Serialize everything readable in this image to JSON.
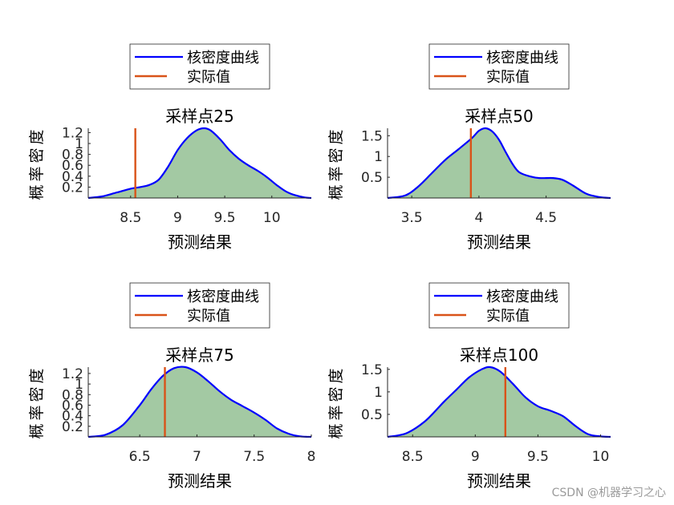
{
  "watermark": "CSDN @机器学习之心",
  "colors": {
    "kde_line": "#0000ff",
    "kde_fill": "#a3c9a3",
    "actual_line": "#d95319",
    "axis": "#262626",
    "text": "#000000"
  },
  "chart_data": [
    {
      "type": "area",
      "title": "采样点25",
      "xlabel": "预测结果",
      "ylabel": "概率密度",
      "legend": [
        "核密度曲线",
        "实际值"
      ],
      "legend_placement": "top",
      "xlim": [
        8.05,
        10.42
      ],
      "ylim": [
        0,
        1.28
      ],
      "xticks": [
        8.5,
        9,
        9.5,
        10
      ],
      "yticks": [
        0.2,
        0.4,
        0.6,
        0.8,
        1,
        1.2
      ],
      "kde": {
        "x": [
          8.05,
          8.2,
          8.35,
          8.5,
          8.6,
          8.7,
          8.8,
          8.9,
          9.0,
          9.1,
          9.2,
          9.28,
          9.35,
          9.45,
          9.55,
          9.65,
          9.75,
          9.85,
          9.95,
          10.05,
          10.15,
          10.25,
          10.35,
          10.42
        ],
        "y": [
          0.0,
          0.03,
          0.1,
          0.17,
          0.2,
          0.24,
          0.34,
          0.58,
          0.88,
          1.1,
          1.24,
          1.28,
          1.24,
          1.08,
          0.88,
          0.72,
          0.6,
          0.5,
          0.38,
          0.24,
          0.12,
          0.05,
          0.01,
          0.0
        ]
      },
      "actual": 8.55
    },
    {
      "type": "area",
      "title": "采样点50",
      "xlabel": "预测结果",
      "ylabel": "概率密度",
      "legend": [
        "核密度曲线",
        "实际值"
      ],
      "legend_placement": "top",
      "xlim": [
        3.32,
        4.98
      ],
      "ylim": [
        0,
        1.68
      ],
      "xticks": [
        3.5,
        4,
        4.5
      ],
      "yticks": [
        0.5,
        1,
        1.5
      ],
      "kde": {
        "x": [
          3.32,
          3.45,
          3.55,
          3.65,
          3.75,
          3.85,
          3.95,
          4.0,
          4.05,
          4.1,
          4.15,
          4.2,
          4.25,
          4.3,
          4.38,
          4.45,
          4.55,
          4.62,
          4.7,
          4.8,
          4.9,
          4.98
        ],
        "y": [
          0.0,
          0.06,
          0.28,
          0.6,
          0.92,
          1.18,
          1.45,
          1.62,
          1.68,
          1.6,
          1.4,
          1.1,
          0.82,
          0.62,
          0.52,
          0.48,
          0.48,
          0.44,
          0.3,
          0.1,
          0.02,
          0.0
        ]
      },
      "actual": 3.94
    },
    {
      "type": "area",
      "title": "采样点75",
      "xlabel": "预测结果",
      "ylabel": "概率密度",
      "legend": [
        "核密度曲线",
        "实际值"
      ],
      "legend_placement": "top",
      "xlim": [
        6.05,
        8.0
      ],
      "ylim": [
        0,
        1.32
      ],
      "xticks": [
        6.5,
        7,
        7.5,
        8
      ],
      "yticks": [
        0.2,
        0.4,
        0.6,
        0.8,
        1,
        1.2
      ],
      "kde": {
        "x": [
          6.05,
          6.2,
          6.35,
          6.5,
          6.6,
          6.7,
          6.8,
          6.9,
          7.0,
          7.1,
          7.2,
          7.3,
          7.4,
          7.5,
          7.6,
          7.7,
          7.8,
          7.9,
          8.0
        ],
        "y": [
          0.0,
          0.04,
          0.22,
          0.6,
          0.9,
          1.15,
          1.3,
          1.32,
          1.22,
          1.05,
          0.86,
          0.7,
          0.58,
          0.46,
          0.32,
          0.16,
          0.06,
          0.01,
          0.0
        ]
      },
      "actual": 6.72
    },
    {
      "type": "area",
      "title": "采样点100",
      "xlabel": "预测结果",
      "ylabel": "概率密度",
      "legend": [
        "核密度曲线",
        "实际值"
      ],
      "legend_placement": "top",
      "xlim": [
        8.3,
        10.08
      ],
      "ylim": [
        0,
        1.55
      ],
      "xticks": [
        8.5,
        9,
        9.5,
        10
      ],
      "yticks": [
        0.5,
        1,
        1.5
      ],
      "kde": {
        "x": [
          8.3,
          8.45,
          8.6,
          8.75,
          8.85,
          8.95,
          9.05,
          9.12,
          9.2,
          9.3,
          9.4,
          9.5,
          9.6,
          9.7,
          9.8,
          9.9,
          10.0,
          10.08
        ],
        "y": [
          0.0,
          0.08,
          0.35,
          0.78,
          1.05,
          1.32,
          1.5,
          1.55,
          1.45,
          1.18,
          0.88,
          0.68,
          0.58,
          0.46,
          0.24,
          0.06,
          0.01,
          0.0
        ]
      },
      "actual": 9.24
    }
  ]
}
